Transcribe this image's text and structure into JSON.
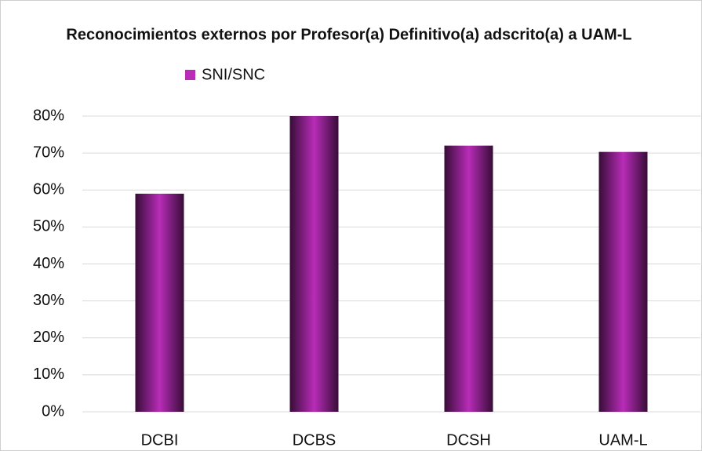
{
  "chart_data": {
    "type": "bar",
    "title": "Reconocimientos externos por Profesor(a) Definitivo(a) adscrito(a) a UAM-L",
    "categories": [
      "DCBI",
      "DCBS",
      "DCSH",
      "UAM-L"
    ],
    "series": [
      {
        "name": "SNI/SNC",
        "color": "#b82cb8",
        "values": [
          59,
          80,
          72,
          70.3
        ]
      }
    ],
    "ylim": [
      0,
      80
    ],
    "yticks": [
      {
        "value": 0,
        "label": "0%"
      },
      {
        "value": 10,
        "label": "10%"
      },
      {
        "value": 20,
        "label": "20%"
      },
      {
        "value": 30,
        "label": "30%"
      },
      {
        "value": 40,
        "label": "40%"
      },
      {
        "value": 50,
        "label": "50%"
      },
      {
        "value": 60,
        "label": "60%"
      },
      {
        "value": 70,
        "label": "70%"
      },
      {
        "value": 80,
        "label": "80%"
      }
    ],
    "grid": true
  }
}
